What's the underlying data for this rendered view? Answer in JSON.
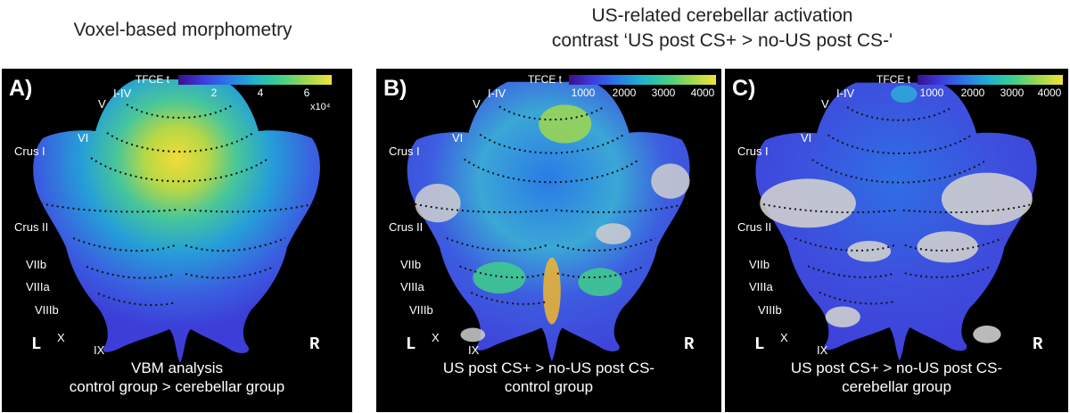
{
  "headings": {
    "left": "Voxel-based morphometry",
    "right_line1": "US-related cerebellar activation",
    "right_line2": "contrast ‘US post CS+ > no-US post CS-'"
  },
  "lobule_labels": [
    "I-IV",
    "V",
    "VI",
    "Crus I",
    "Crus II",
    "VIIb",
    "VIIIa",
    "VIIIb",
    "X",
    "IX"
  ],
  "side_labels": {
    "left": "L",
    "right": "R"
  },
  "colormap": [
    "#3b0f8f",
    "#3d3de0",
    "#2a7be6",
    "#1fb6c9",
    "#3fcf8a",
    "#9fd84f",
    "#f1e23a"
  ],
  "panels": [
    {
      "label": "A)",
      "colorbar": {
        "title": "TFCE t",
        "ticks": [
          "2",
          "4",
          "6"
        ],
        "exponent": "x10⁴"
      },
      "caption_line1": "VBM analysis",
      "caption_line2": "control group > cerebellar group"
    },
    {
      "label": "B)",
      "colorbar": {
        "title": "TFCE t",
        "ticks": [
          "1000",
          "2000",
          "3000",
          "4000"
        ]
      },
      "caption_line1": "US post CS+ > no-US post CS-",
      "caption_line2": "control group"
    },
    {
      "label": "C)",
      "colorbar": {
        "title": "TFCE t",
        "ticks": [
          "1000",
          "2000",
          "3000",
          "4000"
        ]
      },
      "caption_line1": "US post CS+ > no-US post CS-",
      "caption_line2": "cerebellar group"
    }
  ]
}
